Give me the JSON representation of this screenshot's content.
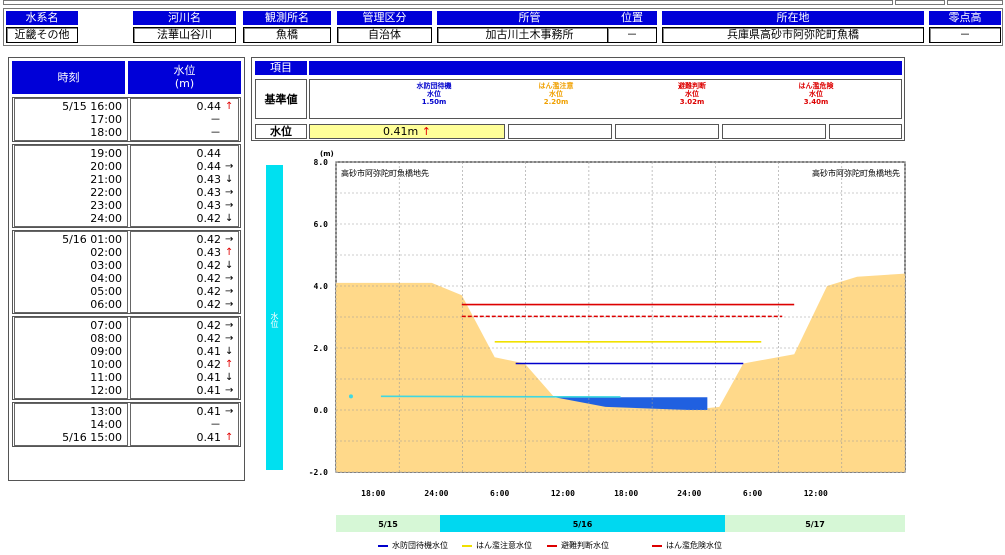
{
  "header": {
    "columns": [
      {
        "label": "水系名",
        "value": "近畿その他"
      },
      {
        "label": "河川名",
        "value": "法華山谷川"
      },
      {
        "label": "観測所名",
        "value": "魚橋"
      },
      {
        "label": "管理区分",
        "value": "自治体"
      },
      {
        "label": "所管",
        "value": "加古川土木事務所"
      },
      {
        "label": "位置",
        "value": "－"
      },
      {
        "label": "所在地",
        "value": "兵庫県高砂市阿弥陀町魚橋"
      },
      {
        "label": "零点高",
        "value": "－"
      }
    ]
  },
  "timetable": {
    "col_time": "時刻",
    "col_level": "水位",
    "col_level_unit": "(m)",
    "groups": [
      [
        {
          "time": "5/15 16:00",
          "value": "0.44",
          "trend": "up"
        },
        {
          "time": "17:00",
          "value": "－",
          "trend": ""
        },
        {
          "time": "18:00",
          "value": "－",
          "trend": ""
        }
      ],
      [
        {
          "time": "19:00",
          "value": "0.44",
          "trend": ""
        },
        {
          "time": "20:00",
          "value": "0.44",
          "trend": "flat"
        },
        {
          "time": "21:00",
          "value": "0.43",
          "trend": "down"
        },
        {
          "time": "22:00",
          "value": "0.43",
          "trend": "flat"
        },
        {
          "time": "23:00",
          "value": "0.43",
          "trend": "flat"
        },
        {
          "time": "24:00",
          "value": "0.42",
          "trend": "down"
        }
      ],
      [
        {
          "time": "5/16 01:00",
          "value": "0.42",
          "trend": "flat"
        },
        {
          "time": "02:00",
          "value": "0.43",
          "trend": "up"
        },
        {
          "time": "03:00",
          "value": "0.42",
          "trend": "down"
        },
        {
          "time": "04:00",
          "value": "0.42",
          "trend": "flat"
        },
        {
          "time": "05:00",
          "value": "0.42",
          "trend": "flat"
        },
        {
          "time": "06:00",
          "value": "0.42",
          "trend": "flat"
        }
      ],
      [
        {
          "time": "07:00",
          "value": "0.42",
          "trend": "flat"
        },
        {
          "time": "08:00",
          "value": "0.42",
          "trend": "flat"
        },
        {
          "time": "09:00",
          "value": "0.41",
          "trend": "down"
        },
        {
          "time": "10:00",
          "value": "0.42",
          "trend": "up"
        },
        {
          "time": "11:00",
          "value": "0.41",
          "trend": "down"
        },
        {
          "time": "12:00",
          "value": "0.41",
          "trend": "flat"
        }
      ],
      [
        {
          "time": "13:00",
          "value": "0.41",
          "trend": "flat"
        },
        {
          "time": "14:00",
          "value": "－",
          "trend": ""
        },
        {
          "time": "5/16 15:00",
          "value": "0.41",
          "trend": "up"
        }
      ]
    ]
  },
  "reference": {
    "item_label": "項目",
    "kijun_label": "基準値",
    "suii_label": "水位",
    "current_level": "0.41m",
    "current_trend": "up",
    "thresholds": [
      {
        "name": "水防団待機",
        "sub": "水位",
        "value": "1.50m",
        "color": "#0000cc"
      },
      {
        "name": "はん濫注意",
        "sub": "水位",
        "value": "2.20m",
        "color": "#f0a000"
      },
      {
        "name": "避難判断",
        "sub": "水位",
        "value": "3.02m",
        "color": "#dd0000"
      },
      {
        "name": "はん濫危険",
        "sub": "水位",
        "value": "3.40m",
        "color": "#dd0000"
      }
    ]
  },
  "chart_data": {
    "type": "area",
    "title_left": "高砂市阿弥陀町魚橋地先",
    "title_right": "高砂市阿弥陀町魚橋地先",
    "y_unit": "(m)",
    "side_label": "水位",
    "ylim": [
      -2.0,
      8.0
    ],
    "y_ticks": [
      8.0,
      6.0,
      4.0,
      2.0,
      0.0,
      -2.0
    ],
    "y_tick_labels": [
      "8.0",
      "6.0",
      "4.0",
      "2.0",
      "0.0",
      "-2.0"
    ],
    "x_tick_labels": [
      "18:00",
      "24:00",
      "6:00",
      "12:00",
      "18:00",
      "24:00",
      "6:00",
      "12:00"
    ],
    "date_labels": [
      "5/15",
      "5/16",
      "5/17"
    ],
    "threshold_lines": [
      {
        "name": "水防団待機水位",
        "value": 1.5,
        "style": "solid",
        "color": "#0000cc"
      },
      {
        "name": "はん濫注意水位",
        "value": 2.2,
        "style": "solid",
        "color": "#f0e000"
      },
      {
        "name": "避難判断水位",
        "value": 3.02,
        "style": "dashed",
        "color": "#dd0000"
      },
      {
        "name": "はん濫危険水位",
        "value": 3.4,
        "style": "solid",
        "color": "#dd0000"
      }
    ],
    "series": [
      {
        "name": "",
        "x_hours": [
          0,
          23
        ],
        "values": [
          0.44,
          0.42
        ],
        "color": "#40d8e0"
      }
    ],
    "cross_section": [
      [
        0,
        4.1
      ],
      [
        3.2,
        4.1
      ],
      [
        4.2,
        3.7
      ],
      [
        5.3,
        1.7
      ],
      [
        6.3,
        1.5
      ],
      [
        7.3,
        0.4
      ],
      [
        11.8,
        0.0
      ],
      [
        12.8,
        0.1
      ],
      [
        13.6,
        1.5
      ],
      [
        15.3,
        1.8
      ],
      [
        16.4,
        4.0
      ],
      [
        17.4,
        4.3
      ],
      [
        19,
        4.4
      ]
    ],
    "water_fill": {
      "value": 0.41,
      "color": "#2060e0"
    },
    "legend": [
      {
        "label": "水防団待機水位",
        "color": "#0000cc",
        "style": "solid"
      },
      {
        "label": "はん濫注意水位",
        "color": "#f0e000",
        "style": "solid"
      },
      {
        "label": "避難判断水位",
        "color": "#dd0000",
        "style": "dashed"
      },
      {
        "label": "はん濫危険水位",
        "color": "#dd0000",
        "style": "solid"
      }
    ]
  }
}
